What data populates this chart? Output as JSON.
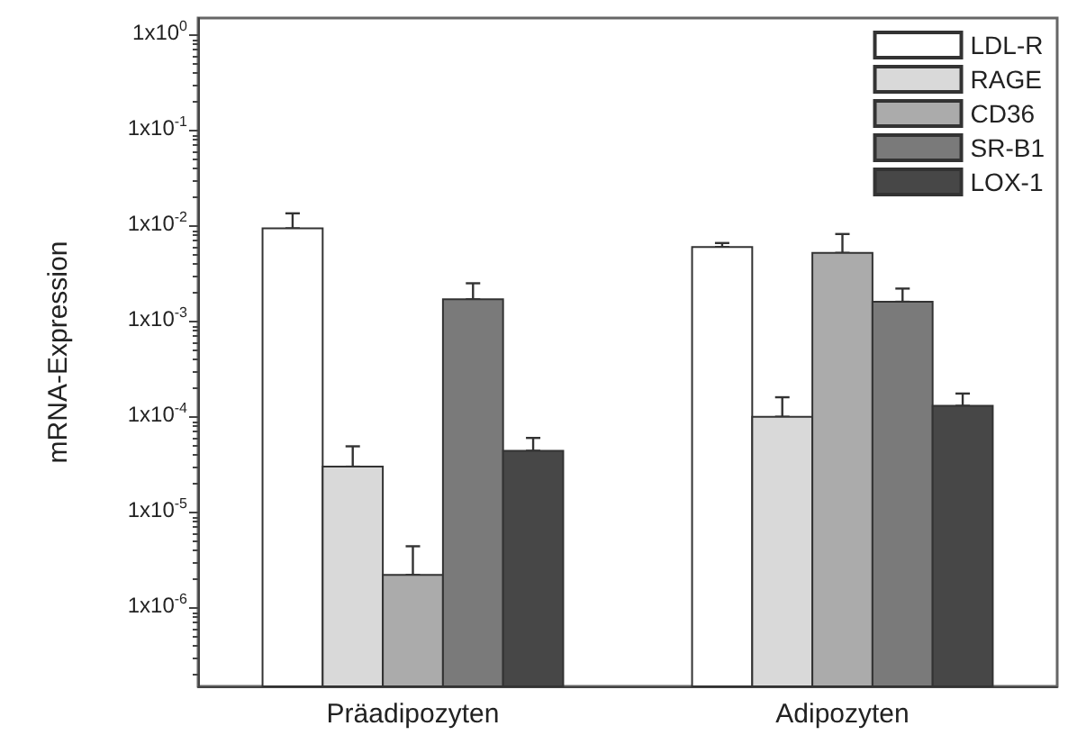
{
  "chart_data": {
    "type": "bar",
    "ylabel": "mRNA-Expression",
    "categories": [
      "Präadipozyten",
      "Adipozyten"
    ],
    "series": [
      {
        "name": "LDL-R",
        "color": "#ffffff",
        "values": [
          0.0094,
          0.006
        ],
        "errors": [
          [
            0.0094,
            0.0135
          ],
          [
            0.006,
            0.0066
          ]
        ]
      },
      {
        "name": "RAGE",
        "color": "#d9d9d9",
        "values": [
          3e-05,
          0.0001
        ],
        "errors": [
          [
            3e-05,
            4.9e-05
          ],
          [
            0.0001,
            0.00016
          ]
        ]
      },
      {
        "name": "CD36",
        "color": "#ababab",
        "values": [
          2.2e-06,
          0.0052
        ],
        "errors": [
          [
            2.2e-06,
            4.4e-06
          ],
          [
            0.0052,
            0.0082
          ]
        ]
      },
      {
        "name": "SR-B1",
        "color": "#7a7a7a",
        "values": [
          0.0017,
          0.0016
        ],
        "errors": [
          [
            0.0017,
            0.0025
          ],
          [
            0.0016,
            0.0022
          ]
        ]
      },
      {
        "name": "LOX-1",
        "color": "#474747",
        "values": [
          4.4e-05,
          0.00013
        ],
        "errors": [
          [
            4.4e-05,
            6e-05
          ],
          [
            0.00013,
            0.000175
          ]
        ]
      }
    ],
    "log": "y",
    "ylim": [
      1.5e-07,
      1.5
    ],
    "yticks": [
      {
        "value": 1,
        "label": "1x10$^{0}$"
      },
      {
        "value": 0.1,
        "label": "1x10$^{-1}$"
      },
      {
        "value": 0.01,
        "label": "1x10$^{-2}$"
      },
      {
        "value": 0.001,
        "label": "1x10$^{-3}$"
      },
      {
        "value": 0.0001,
        "label": "1x10$^{-4}$"
      },
      {
        "value": 1e-05,
        "label": "1x10$^{-5}$"
      },
      {
        "value": 1e-06,
        "label": "1x10$^{-6}$"
      }
    ],
    "grid": false,
    "legend": "top right"
  }
}
